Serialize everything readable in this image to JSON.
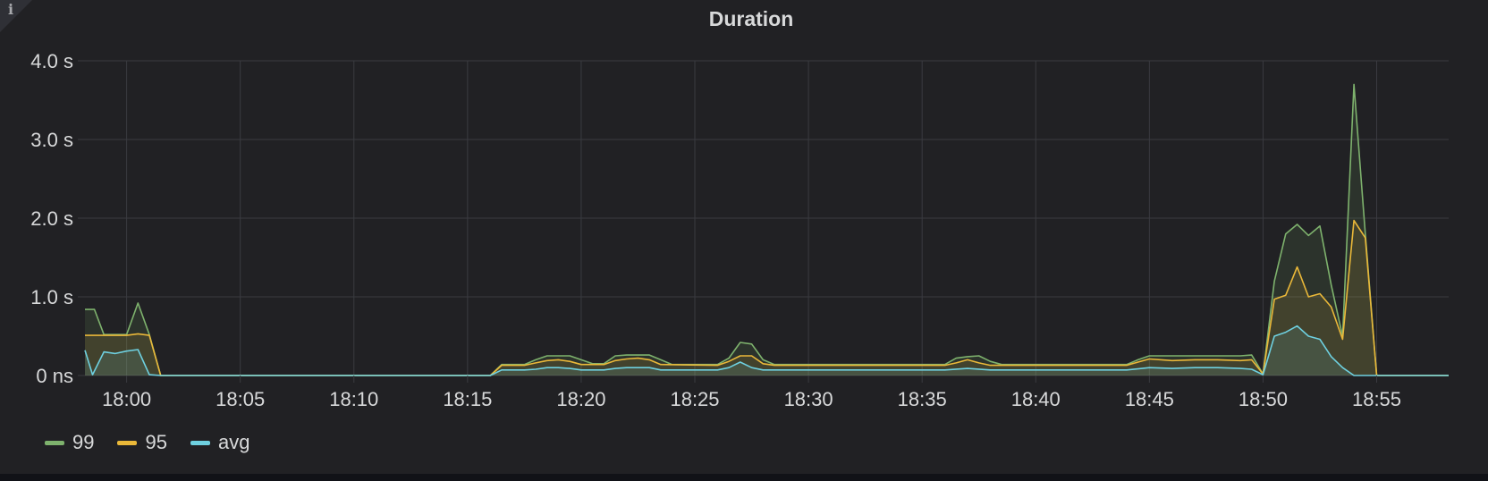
{
  "panel": {
    "title": "Duration"
  },
  "colors": {
    "p99": "#7eb26d",
    "p95": "#eab839",
    "avg": "#6ed0e0",
    "grid": "#3a3b40",
    "axis_text": "#d8d9da"
  },
  "chart_data": {
    "type": "line",
    "title": "Duration",
    "x_unit": "minutes of day",
    "xlim": [
      "17:58:10",
      "18:58:10"
    ],
    "ylim": [
      0,
      4
    ],
    "y_unit": "seconds",
    "y_ticks": [
      {
        "value": 0,
        "label": "0 ns"
      },
      {
        "value": 1,
        "label": "1.0 s"
      },
      {
        "value": 2,
        "label": "2.0 s"
      },
      {
        "value": 3,
        "label": "3.0 s"
      },
      {
        "value": 4,
        "label": "4.0 s"
      }
    ],
    "x_ticks": [
      "18:00",
      "18:05",
      "18:10",
      "18:15",
      "18:20",
      "18:25",
      "18:30",
      "18:35",
      "18:40",
      "18:45",
      "18:50",
      "18:55"
    ],
    "grid": true,
    "legend_position": "bottom-left",
    "series": [
      {
        "name": "99",
        "color": "#7eb26d",
        "fill": true,
        "points": [
          [
            "17:58:10",
            0.84
          ],
          [
            "17:58:35",
            0.84
          ],
          [
            "17:59:00",
            0.52
          ],
          [
            "17:59:30",
            0.52
          ],
          [
            "18:00:00",
            0.52
          ],
          [
            "18:00:30",
            0.92
          ],
          [
            "18:01:00",
            0.52
          ],
          [
            "18:01:30",
            0
          ],
          [
            "18:16:00",
            0
          ],
          [
            "18:16:30",
            0.14
          ],
          [
            "18:17:00",
            0.14
          ],
          [
            "18:17:30",
            0.14
          ],
          [
            "18:18:00",
            0.2
          ],
          [
            "18:18:30",
            0.25
          ],
          [
            "18:19:00",
            0.25
          ],
          [
            "18:19:30",
            0.25
          ],
          [
            "18:20:00",
            0.2
          ],
          [
            "18:20:30",
            0.15
          ],
          [
            "18:21:00",
            0.15
          ],
          [
            "18:21:30",
            0.25
          ],
          [
            "18:22:00",
            0.26
          ],
          [
            "18:22:30",
            0.26
          ],
          [
            "18:23:00",
            0.26
          ],
          [
            "18:23:30",
            0.2
          ],
          [
            "18:24:00",
            0.14
          ],
          [
            "18:25:00",
            0.14
          ],
          [
            "18:26:00",
            0.14
          ],
          [
            "18:26:30",
            0.22
          ],
          [
            "18:27:00",
            0.42
          ],
          [
            "18:27:30",
            0.4
          ],
          [
            "18:28:00",
            0.2
          ],
          [
            "18:28:30",
            0.14
          ],
          [
            "18:30:00",
            0.14
          ],
          [
            "18:32:00",
            0.14
          ],
          [
            "18:34:00",
            0.14
          ],
          [
            "18:36:00",
            0.14
          ],
          [
            "18:36:30",
            0.22
          ],
          [
            "18:37:00",
            0.24
          ],
          [
            "18:37:30",
            0.25
          ],
          [
            "18:38:00",
            0.18
          ],
          [
            "18:38:30",
            0.14
          ],
          [
            "18:40:00",
            0.14
          ],
          [
            "18:42:00",
            0.14
          ],
          [
            "18:44:00",
            0.14
          ],
          [
            "18:44:30",
            0.2
          ],
          [
            "18:45:00",
            0.25
          ],
          [
            "18:46:00",
            0.25
          ],
          [
            "18:47:00",
            0.25
          ],
          [
            "18:48:00",
            0.25
          ],
          [
            "18:49:00",
            0.25
          ],
          [
            "18:49:30",
            0.26
          ],
          [
            "18:50:00",
            0.02
          ],
          [
            "18:50:30",
            1.2
          ],
          [
            "18:51:00",
            1.8
          ],
          [
            "18:51:30",
            1.92
          ],
          [
            "18:52:00",
            1.78
          ],
          [
            "18:52:30",
            1.9
          ],
          [
            "18:53:00",
            1.15
          ],
          [
            "18:53:30",
            0.5
          ],
          [
            "18:54:00",
            3.7
          ],
          [
            "18:54:30",
            1.8
          ],
          [
            "18:55:00",
            0
          ],
          [
            "18:58:10",
            0
          ]
        ]
      },
      {
        "name": "95",
        "color": "#eab839",
        "fill": true,
        "points": [
          [
            "17:58:10",
            0.51
          ],
          [
            "17:59:00",
            0.51
          ],
          [
            "18:00:00",
            0.51
          ],
          [
            "18:00:30",
            0.53
          ],
          [
            "18:01:00",
            0.51
          ],
          [
            "18:01:30",
            0
          ],
          [
            "18:16:00",
            0
          ],
          [
            "18:16:30",
            0.13
          ],
          [
            "18:17:30",
            0.13
          ],
          [
            "18:18:00",
            0.16
          ],
          [
            "18:18:30",
            0.19
          ],
          [
            "18:19:00",
            0.2
          ],
          [
            "18:19:30",
            0.18
          ],
          [
            "18:20:00",
            0.14
          ],
          [
            "18:21:00",
            0.14
          ],
          [
            "18:21:30",
            0.19
          ],
          [
            "18:22:00",
            0.21
          ],
          [
            "18:22:30",
            0.22
          ],
          [
            "18:23:00",
            0.2
          ],
          [
            "18:23:30",
            0.14
          ],
          [
            "18:26:00",
            0.13
          ],
          [
            "18:26:30",
            0.18
          ],
          [
            "18:27:00",
            0.25
          ],
          [
            "18:27:30",
            0.25
          ],
          [
            "18:28:00",
            0.15
          ],
          [
            "18:28:30",
            0.13
          ],
          [
            "18:36:00",
            0.13
          ],
          [
            "18:36:30",
            0.16
          ],
          [
            "18:37:00",
            0.2
          ],
          [
            "18:37:30",
            0.16
          ],
          [
            "18:38:00",
            0.13
          ],
          [
            "18:44:00",
            0.13
          ],
          [
            "18:44:30",
            0.17
          ],
          [
            "18:45:00",
            0.21
          ],
          [
            "18:46:00",
            0.19
          ],
          [
            "18:47:00",
            0.2
          ],
          [
            "18:48:00",
            0.2
          ],
          [
            "18:49:00",
            0.19
          ],
          [
            "18:49:30",
            0.2
          ],
          [
            "18:50:00",
            0.02
          ],
          [
            "18:50:30",
            0.97
          ],
          [
            "18:51:00",
            1.02
          ],
          [
            "18:51:30",
            1.38
          ],
          [
            "18:52:00",
            1.0
          ],
          [
            "18:52:30",
            1.04
          ],
          [
            "18:53:00",
            0.87
          ],
          [
            "18:53:30",
            0.46
          ],
          [
            "18:54:00",
            1.97
          ],
          [
            "18:54:30",
            1.75
          ],
          [
            "18:55:00",
            0
          ],
          [
            "18:58:10",
            0
          ]
        ]
      },
      {
        "name": "avg",
        "color": "#6ed0e0",
        "fill": true,
        "points": [
          [
            "17:58:10",
            0.32
          ],
          [
            "17:58:30",
            0.01
          ],
          [
            "17:59:00",
            0.3
          ],
          [
            "17:59:30",
            0.28
          ],
          [
            "18:00:00",
            0.31
          ],
          [
            "18:00:30",
            0.33
          ],
          [
            "18:01:00",
            0.01
          ],
          [
            "18:01:30",
            0
          ],
          [
            "18:16:00",
            0
          ],
          [
            "18:16:30",
            0.07
          ],
          [
            "18:17:30",
            0.07
          ],
          [
            "18:18:00",
            0.08
          ],
          [
            "18:18:30",
            0.1
          ],
          [
            "18:19:00",
            0.1
          ],
          [
            "18:19:30",
            0.09
          ],
          [
            "18:20:00",
            0.07
          ],
          [
            "18:21:00",
            0.07
          ],
          [
            "18:21:30",
            0.09
          ],
          [
            "18:22:00",
            0.1
          ],
          [
            "18:23:00",
            0.1
          ],
          [
            "18:23:30",
            0.07
          ],
          [
            "18:26:00",
            0.07
          ],
          [
            "18:26:30",
            0.1
          ],
          [
            "18:27:00",
            0.17
          ],
          [
            "18:27:30",
            0.1
          ],
          [
            "18:28:00",
            0.07
          ],
          [
            "18:36:00",
            0.07
          ],
          [
            "18:37:00",
            0.09
          ],
          [
            "18:38:00",
            0.07
          ],
          [
            "18:44:00",
            0.07
          ],
          [
            "18:45:00",
            0.1
          ],
          [
            "18:46:00",
            0.09
          ],
          [
            "18:47:00",
            0.1
          ],
          [
            "18:48:00",
            0.1
          ],
          [
            "18:49:00",
            0.09
          ],
          [
            "18:49:30",
            0.08
          ],
          [
            "18:50:00",
            0.01
          ],
          [
            "18:50:30",
            0.5
          ],
          [
            "18:51:00",
            0.55
          ],
          [
            "18:51:30",
            0.63
          ],
          [
            "18:52:00",
            0.5
          ],
          [
            "18:52:30",
            0.46
          ],
          [
            "18:53:00",
            0.24
          ],
          [
            "18:53:30",
            0.1
          ],
          [
            "18:54:00",
            0
          ],
          [
            "18:58:10",
            0
          ]
        ]
      }
    ]
  }
}
